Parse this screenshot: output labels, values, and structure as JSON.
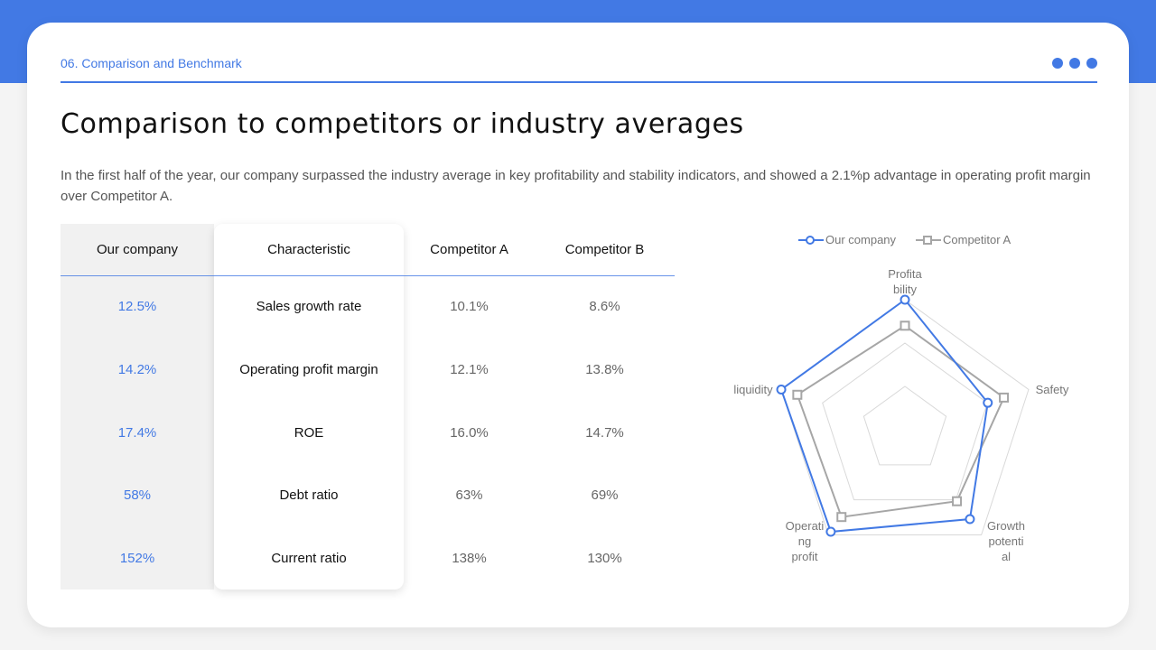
{
  "header": {
    "section_label": "06. Comparison and Benchmark",
    "title": "Comparison to competitors or industry averages",
    "description": "In the first half of the year, our company surpassed the industry average in key profitability  and stability  indicators,  and showed a 2.1%p advantage in operating profit margin over Competitor  A.",
    "accent_color": "#4279e4"
  },
  "table": {
    "headers": [
      "Our company",
      "Characteristic",
      "Competitor  A",
      "Competitor  B"
    ],
    "rows": [
      {
        "our": "12.5%",
        "characteristic": "Sales growth rate",
        "comp_a": "10.1%",
        "comp_b": "8.6%"
      },
      {
        "our": "14.2%",
        "characteristic": "Operating profit margin",
        "comp_a": "12.1%",
        "comp_b": "13.8%"
      },
      {
        "our": "17.4%",
        "characteristic": "ROE",
        "comp_a": "16.0%",
        "comp_b": "14.7%"
      },
      {
        "our": "58%",
        "characteristic": "Debt ratio",
        "comp_a": "63%",
        "comp_b": "69%"
      },
      {
        "our": "152%",
        "characteristic": "Current ratio",
        "comp_a": "138%",
        "comp_b": "130%"
      }
    ]
  },
  "chart_data": {
    "type": "radar",
    "title": "",
    "categories": [
      "Profitability",
      "Safety",
      "Growth potential",
      "Operating profit",
      "liquidity"
    ],
    "category_labels_wrapped": [
      "Profita\nbility",
      "Safety",
      "Growth\npotenti\nal",
      "Operati\nng\nprofit",
      "liquidity"
    ],
    "series": [
      {
        "name": "Our company",
        "color": "#4279e4",
        "marker": "circle",
        "values": [
          1.0,
          0.67,
          0.85,
          0.97,
          1.0
        ]
      },
      {
        "name": "Competitor A",
        "color": "#a6a6a6",
        "marker": "square",
        "values": [
          0.8,
          0.8,
          0.68,
          0.83,
          0.87
        ]
      }
    ],
    "rings": 3,
    "grid": true,
    "legend_position": "top",
    "range": [
      0,
      1
    ]
  },
  "legend": {
    "our": "Our company",
    "comp_a": "Competitor A"
  },
  "axis_labels": {
    "profitability_1": "Profita",
    "profitability_2": "bility",
    "safety": "Safety",
    "growth_1": "Growth",
    "growth_2": "potenti",
    "growth_3": "al",
    "operating_1": "Operati",
    "operating_2": "ng",
    "operating_3": "profit",
    "liquidity": "liquidity"
  }
}
